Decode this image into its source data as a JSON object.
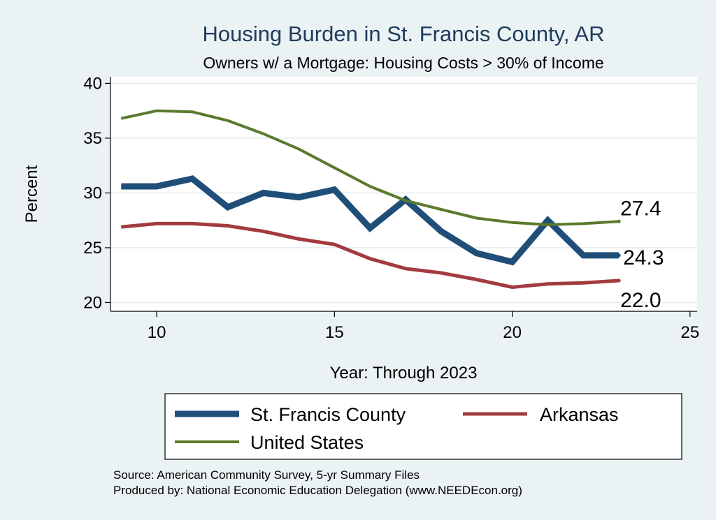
{
  "chart_data": {
    "type": "line",
    "title": "Housing Burden in St. Francis County, AR",
    "subtitle": "Owners w/ a Mortgage: Housing Costs > 30% of Income",
    "xlabel": "Year: Through 2023",
    "ylabel": "Percent",
    "xlim": [
      8.7,
      25.2
    ],
    "ylim": [
      19.2,
      40.6
    ],
    "xticks": [
      10,
      15,
      20,
      25
    ],
    "yticks": [
      20,
      25,
      30,
      35,
      40
    ],
    "grid": true,
    "legend_position": "bottom",
    "x": [
      9,
      10,
      11,
      12,
      13,
      14,
      15,
      16,
      17,
      18,
      19,
      20,
      21,
      22,
      23
    ],
    "series": [
      {
        "name": "St. Francis County",
        "color": "#1f4e79",
        "values": [
          30.6,
          30.6,
          31.3,
          28.7,
          30.0,
          29.6,
          30.3,
          26.8,
          29.4,
          26.5,
          24.5,
          23.7,
          27.5,
          24.3,
          24.3
        ],
        "end_label": "24.3"
      },
      {
        "name": "Arkansas",
        "color": "#a23b3f",
        "values": [
          26.9,
          27.2,
          27.2,
          27.0,
          26.5,
          25.8,
          25.3,
          24.0,
          23.1,
          22.7,
          22.1,
          21.4,
          21.7,
          21.8,
          22.0
        ],
        "end_label": "22.0"
      },
      {
        "name": "United States",
        "color": "#5a7a2e",
        "values": [
          36.8,
          37.5,
          37.4,
          36.6,
          35.4,
          34.0,
          32.3,
          30.6,
          29.3,
          28.5,
          27.7,
          27.3,
          27.1,
          27.2,
          27.4
        ],
        "end_label": "27.4"
      }
    ],
    "notes": [
      "Source: American Community Survey, 5-yr Summary Files",
      "Produced by: National Economic Education Delegation (www.NEEDEcon.org)"
    ]
  }
}
